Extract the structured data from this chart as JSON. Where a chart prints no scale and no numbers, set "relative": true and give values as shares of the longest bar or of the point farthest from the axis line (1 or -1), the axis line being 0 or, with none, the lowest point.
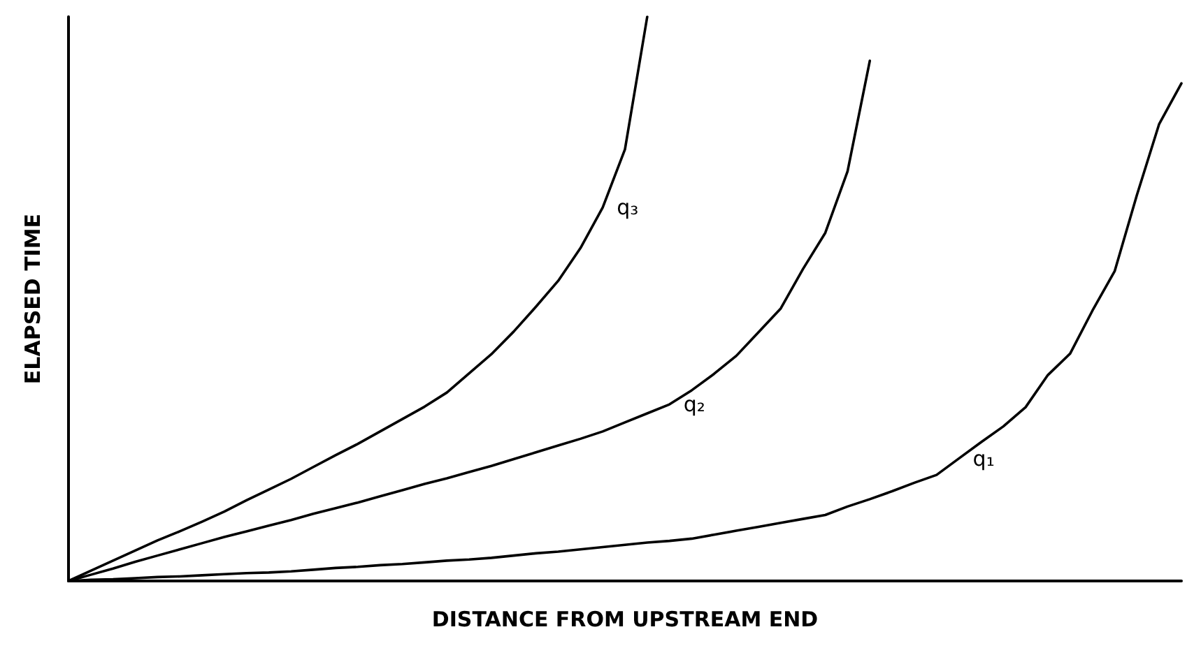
{
  "chart_data": {
    "type": "line",
    "relative": true,
    "xlabel": "DISTANCE FROM UPSTREAM END",
    "ylabel": "ELAPSED TIME",
    "grid": false,
    "legend": false,
    "line_style": "solid",
    "categories": [
      null,
      null,
      null,
      null,
      null,
      null,
      null,
      null,
      null,
      null,
      null,
      null,
      null,
      null,
      null,
      null,
      null,
      null,
      null,
      null,
      null,
      null,
      null,
      null,
      null,
      null,
      null,
      null,
      null,
      null,
      null,
      null,
      null,
      null,
      null,
      null,
      null,
      null,
      null,
      null,
      null,
      null,
      null,
      null,
      null,
      null,
      null,
      null,
      null,
      null,
      null
    ],
    "series": [
      {
        "name": "q₃",
        "color": "#000000",
        "values": [
          0,
          0.018,
          0.036,
          0.054,
          0.072,
          0.088,
          0.105,
          0.123,
          0.143,
          0.162,
          0.181,
          0.202,
          0.223,
          0.243,
          0.265,
          0.287,
          0.309,
          0.334,
          0.368,
          0.402,
          0.442,
          0.486,
          0.532,
          0.59,
          0.662,
          0.765,
          1,
          null,
          null,
          null,
          null,
          null,
          null,
          null,
          null,
          null,
          null,
          null,
          null,
          null,
          null,
          null,
          null,
          null,
          null,
          null,
          null,
          null,
          null,
          null,
          null
        ]
      },
      {
        "name": "q₂",
        "color": "#000000",
        "values": [
          0,
          0.011,
          0.022,
          0.034,
          0.045,
          0.056,
          0.067,
          0.078,
          0.088,
          0.098,
          0.108,
          0.119,
          0.129,
          0.139,
          0.15,
          0.161,
          0.172,
          0.182,
          0.193,
          0.204,
          0.216,
          0.228,
          0.24,
          0.252,
          0.265,
          0.281,
          0.297,
          0.313,
          0.338,
          0.367,
          0.399,
          0.441,
          0.483,
          0.553,
          0.617,
          0.726,
          0.922,
          null,
          null,
          null,
          null,
          null,
          null,
          null,
          null,
          null,
          null,
          null,
          null,
          null,
          null
        ]
      },
      {
        "name": "q₁",
        "color": "#000000",
        "values": [
          0,
          0.002,
          0.003,
          0.005,
          0.007,
          0.008,
          0.01,
          0.012,
          0.014,
          0.015,
          0.017,
          0.02,
          0.023,
          0.025,
          0.028,
          0.03,
          0.033,
          0.036,
          0.038,
          0.041,
          0.045,
          0.049,
          0.052,
          0.056,
          0.06,
          0.064,
          0.068,
          0.071,
          0.075,
          0.082,
          0.089,
          0.096,
          0.103,
          0.11,
          0.117,
          0.132,
          0.145,
          0.159,
          0.174,
          0.188,
          0.217,
          0.246,
          0.274,
          0.308,
          0.365,
          0.403,
          0.479,
          0.549,
          0.684,
          0.81,
          0.882
        ]
      }
    ]
  }
}
